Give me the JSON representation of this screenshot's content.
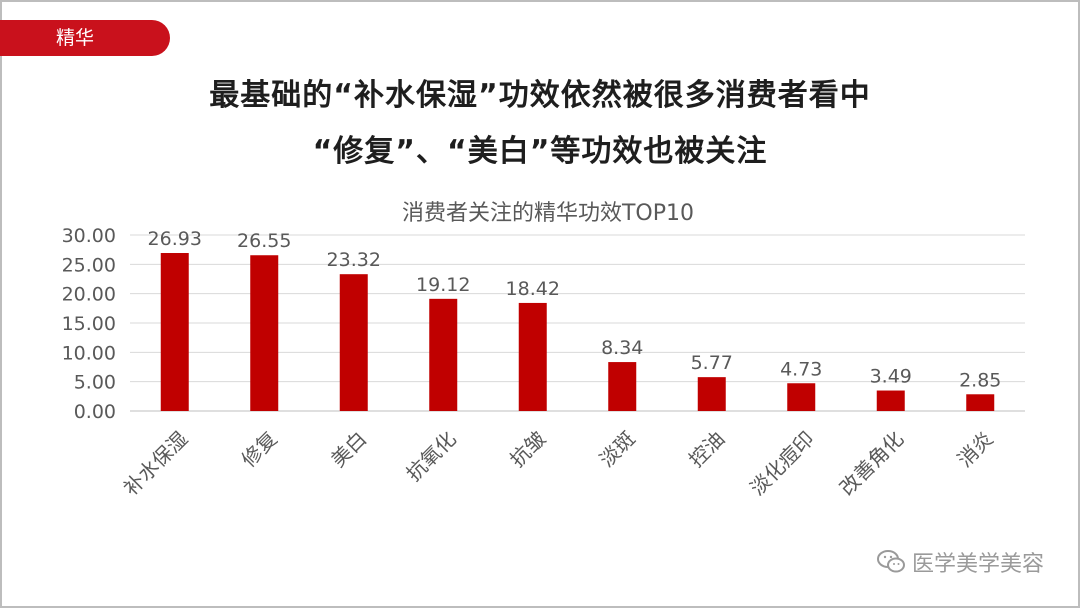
{
  "tag_label": "精华",
  "headline_line1": "最基础的“补水保湿”功效依然被很多消费者看中",
  "headline_line2": "“修复”、“美白”等功效也被关注",
  "watermark_text": "医学美学美容",
  "colors": {
    "bar": "#c00000",
    "accent": "#c9111c"
  },
  "chart_data": {
    "type": "bar",
    "title": "消费者关注的精华功效TOP10",
    "categories": [
      "补水保湿",
      "修复",
      "美白",
      "抗氧化",
      "抗皱",
      "淡斑",
      "控油",
      "淡化痘印",
      "改善角化",
      "消炎"
    ],
    "values": [
      26.93,
      26.55,
      23.32,
      19.12,
      18.42,
      8.34,
      5.77,
      4.73,
      3.49,
      2.85
    ],
    "value_labels": [
      "26.93",
      "26.55",
      "23.32",
      "19.12",
      "18.42",
      "8.34",
      "5.77",
      "4.73",
      "3.49",
      "2.85"
    ],
    "yticks": [
      "0.00",
      "5.00",
      "10.00",
      "15.00",
      "20.00",
      "25.00",
      "30.00"
    ],
    "ylim": [
      0,
      30
    ],
    "xlabel": "",
    "ylabel": "",
    "grid": true,
    "legend": "none"
  }
}
